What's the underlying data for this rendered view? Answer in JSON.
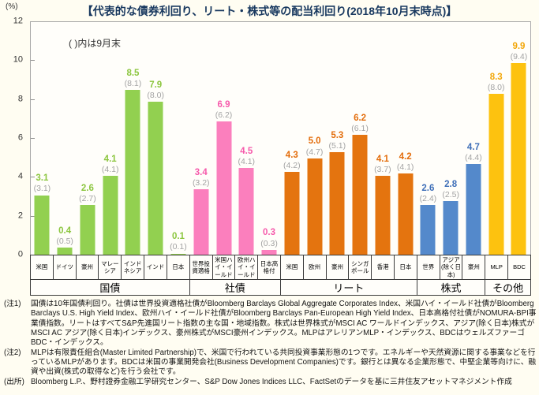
{
  "title": "【代表的な債券利回り、リート・株式等の配当利回り(2018年10月末時点)】",
  "y_axis_unit": "(%)",
  "chart_data": {
    "type": "bar",
    "title": "【代表的な債券利回り、リート・株式等の配当利回り(2018年10月末時点)】",
    "note": "( )内は9月末",
    "ylabel": "(%)",
    "ylim": [
      0,
      12
    ],
    "yticks": [
      0,
      2,
      4,
      6,
      8,
      10,
      12
    ],
    "legend": "値は2018年10月末、括弧内は9月末",
    "grid": false,
    "paren_label_color": "#a3a3a3",
    "groups": [
      {
        "label": "国債",
        "bar_color": "#92d050",
        "label_color": "#8cc63f",
        "items": [
          {
            "label": "米国",
            "value": 3.1,
            "prev": 3.1
          },
          {
            "label": "ドイツ",
            "value": 0.4,
            "prev": 0.5
          },
          {
            "label": "豪州",
            "value": 2.6,
            "prev": 2.7
          },
          {
            "label": "マレーシア",
            "value": 4.1,
            "prev": 4.1
          },
          {
            "label": "インドネシア",
            "value": 8.5,
            "prev": 8.1
          },
          {
            "label": "インド",
            "value": 7.9,
            "prev": 8.0
          },
          {
            "label": "日本",
            "value": 0.1,
            "prev": 0.1
          }
        ]
      },
      {
        "label": "社債",
        "bar_color": "#fb7fbd",
        "label_color": "#f659ab",
        "items": [
          {
            "label": "世界投資適格",
            "value": 3.4,
            "prev": 3.2
          },
          {
            "label": "米国ハイ・イールド",
            "value": 6.9,
            "prev": 6.2
          },
          {
            "label": "欧州ハイ・イールド",
            "value": 4.5,
            "prev": 4.1
          },
          {
            "label": "日本高格付",
            "value": 0.3,
            "prev": 0.3
          }
        ]
      },
      {
        "label": "リート",
        "bar_color": "#e4740f",
        "label_color": "#e36c0a",
        "items": [
          {
            "label": "米国",
            "value": 4.3,
            "prev": 4.2
          },
          {
            "label": "欧州",
            "value": 5.0,
            "prev": 4.7
          },
          {
            "label": "豪州",
            "value": 5.3,
            "prev": 5.1
          },
          {
            "label": "シンガポール",
            "value": 6.2,
            "prev": 6.1
          },
          {
            "label": "香港",
            "value": 4.1,
            "prev": 3.7
          },
          {
            "label": "日本",
            "value": 4.2,
            "prev": 4.1
          }
        ]
      },
      {
        "label": "株式",
        "bar_color": "#5489cb",
        "label_color": "#3f6fb8",
        "items": [
          {
            "label": "世界",
            "value": 2.6,
            "prev": 2.4
          },
          {
            "label": "アジア(除く日本)",
            "value": 2.8,
            "prev": 2.5
          },
          {
            "label": "豪州",
            "value": 4.7,
            "prev": 4.4
          }
        ]
      },
      {
        "label": "その他",
        "bar_color": "#fdc20f",
        "label_color": "#f2a70a",
        "items": [
          {
            "label": "MLP",
            "value": 8.3,
            "prev": 8.0
          },
          {
            "label": "BDC",
            "value": 9.9,
            "prev": 9.4
          }
        ]
      }
    ]
  },
  "notes": [
    {
      "tag": "(注1)",
      "text": "国債は10年国債利回り。社債は世界投資適格社債がBloomberg Barclays Global Aggregate Corporates Index、米国ハイ・イールド社債がBloomberg Barclays U.S. High Yield Index、欧州ハイ・イールド社債がBloomberg Barclays Pan-European High Yield Index、日本高格付社債がNOMURA-BPI事業債指数。リートはすべてS&P先進国リート指数の主な国・地域指数。株式は世界株式がMSCI AC ワールドインデックス、アジア(除く日本)株式がMSCI AC アジア(除く日本)インデックス、豪州株式がMSCI豪州インデックス。MLPはアレリアンMLP・インデックス、BDCはウェルズファーゴBDC・インデックス。"
    },
    {
      "tag": "(注2)",
      "text": "MLPは有限責任組合(Master Limited Partnership)で、米国で行われている共同投資事業形態の1つです。エネルギーや天然資源に関する事業などを行っているMLPがあります。BDCは米国の事業開発会社(Business Development Companies)です。銀行とは異なる企業形態で、中堅企業等向けに、融資や出資(株式の取得など)を行う会社です。"
    },
    {
      "tag": "(出所)",
      "text": "Bloomberg L.P.、野村證券金融工学研究センター、S&P Dow Jones Indices LLC、FactSetのデータを基に三井住友アセットマネジメント作成"
    }
  ]
}
